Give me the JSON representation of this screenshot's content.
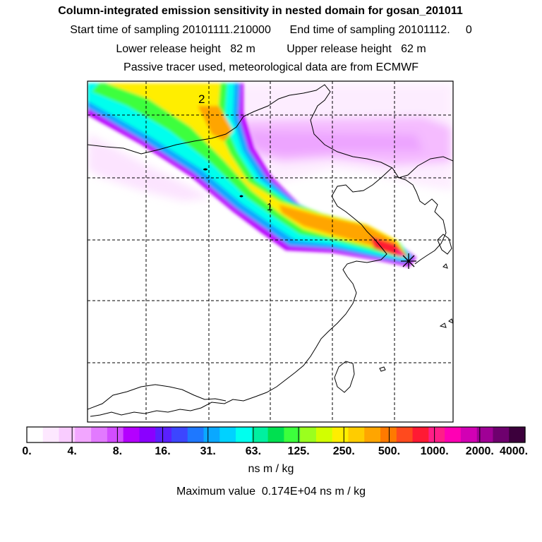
{
  "title": {
    "line1": "Column-integrated emission sensitivity in nested domain for gosan_201011",
    "line2": "Start time of sampling 20101111.210000      End time of sampling 20101112.     0",
    "line3": "Lower release height   82 m          Upper release height   62 m",
    "line4": "Passive tracer used, meteorological data are from ECMWF"
  },
  "map": {
    "plume_labels": [
      "2",
      "1"
    ],
    "receptor_marker": "star",
    "gridlines": "dashed",
    "colors": {
      "plume_outer": "#b800ff",
      "plume_blue": "#0aa8ff",
      "plume_cyan": "#00ffee",
      "plume_green": "#3cff3c",
      "plume_yellow": "#ffee00",
      "plume_orange": "#ff9900",
      "plume_red": "#ff1a33",
      "haze_pink": "#f2a6ff",
      "coast": "#000000"
    }
  },
  "colorbar": {
    "colors": [
      "#ffffff",
      "#fde8ff",
      "#f9ccff",
      "#f2a6ff",
      "#e27aff",
      "#d24dff",
      "#b400ff",
      "#8a00ff",
      "#5a20ff",
      "#3c46ff",
      "#1e78ff",
      "#0aa8ff",
      "#00d2ff",
      "#00ffee",
      "#00f0a0",
      "#00e050",
      "#3cff3c",
      "#9bff1e",
      "#d2ff00",
      "#ffee00",
      "#ffcc00",
      "#ffa500",
      "#ff7a00",
      "#ff4a1e",
      "#ff1a33",
      "#ff1e88",
      "#ff00b4",
      "#d200b4",
      "#a00096",
      "#6e006e",
      "#3c003c"
    ],
    "tick_labels": [
      "0.",
      "4.",
      "8.",
      "16.",
      "31.",
      "63.",
      "125.",
      "250.",
      "500.",
      "1000.",
      "2000.",
      "4000."
    ],
    "unit": "ns m / kg"
  },
  "max_value_line": "Maximum value  0.174E+04 ns m / kg"
}
